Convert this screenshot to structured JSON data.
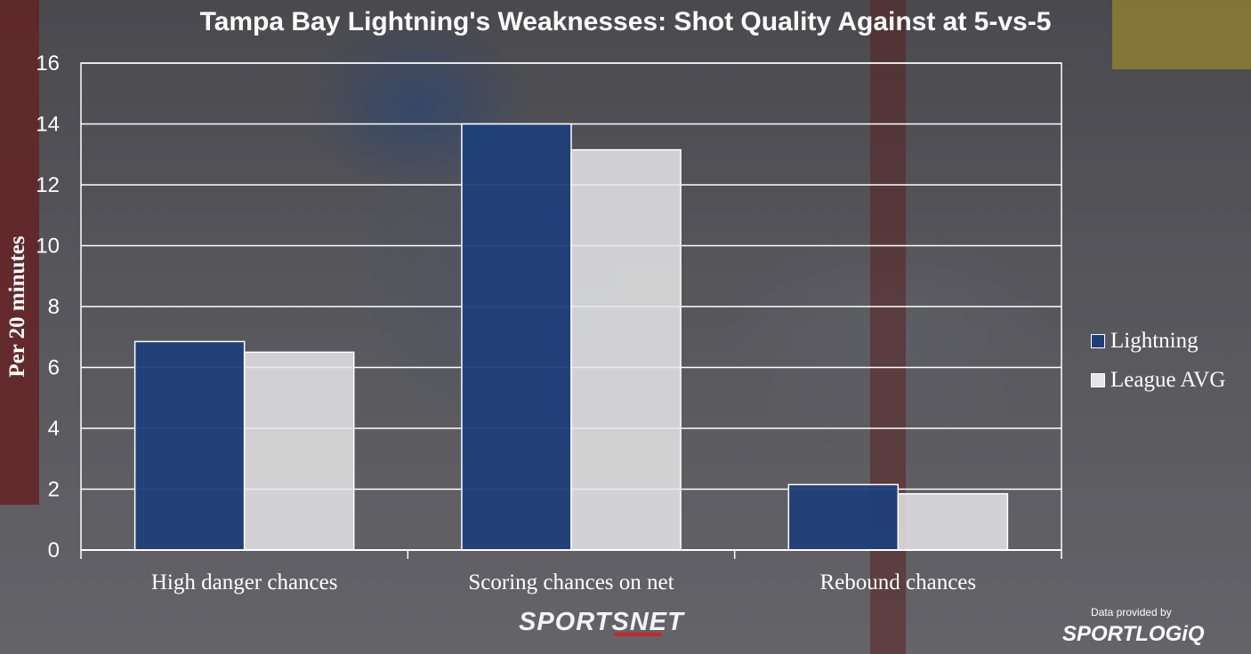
{
  "chart_data": {
    "type": "bar",
    "title": "Tampa Bay Lightning's Weaknesses: Shot Quality Against at 5-vs-5",
    "ylabel": "Per 20 minutes",
    "xlabel": "",
    "ylim": [
      0,
      16
    ],
    "yticks": [
      0,
      2,
      4,
      6,
      8,
      10,
      12,
      14,
      16
    ],
    "grid": true,
    "legend_position": "right",
    "categories": [
      "High danger chances",
      "Scoring chances on net",
      "Rebound chances"
    ],
    "series": [
      {
        "name": "Lightning",
        "color": "#1f3f7a",
        "values": [
          6.85,
          14.0,
          2.15
        ]
      },
      {
        "name": "League AVG",
        "color": "#e6e6e8",
        "values": [
          6.5,
          13.15,
          1.85
        ]
      }
    ]
  },
  "branding": {
    "publisher": "SPORTSNET",
    "credit_text": "Data provided by",
    "credit_logo": "SPORTLOGiQ"
  }
}
